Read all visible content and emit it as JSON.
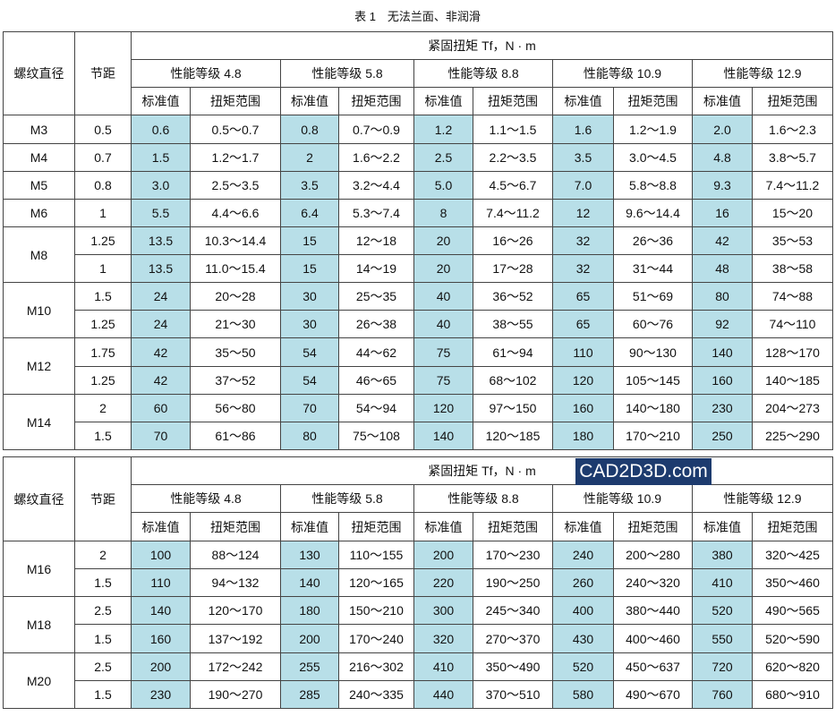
{
  "title": "表 1　无法兰面、非润滑",
  "watermark": "CAD2D3D.com",
  "tables": [
    {
      "header": {
        "diameter": "螺纹直径",
        "pitch": "节距",
        "torque": "紧固扭矩  Tf，N · m",
        "grades": [
          "性能等级  4.8",
          "性能等级  5.8",
          "性能等级  8.8",
          "性能等级  10.9",
          "性能等级  12.9"
        ],
        "subheaders": [
          "标准值",
          "扭矩范围",
          "标准值",
          "扭矩范围",
          "标准值",
          "扭矩范围",
          "标准值",
          "扭矩范围",
          "标准值",
          "扭矩范围"
        ]
      },
      "groups": [
        {
          "diameter": "M3",
          "rows": [
            [
              "0.5",
              "0.6",
              "0.5～0.7",
              "0.8",
              "0.7～0.9",
              "1.2",
              "1.1～1.5",
              "1.6",
              "1.2～1.9",
              "2.0",
              "1.6～2.3"
            ]
          ]
        },
        {
          "diameter": "M4",
          "rows": [
            [
              "0.7",
              "1.5",
              "1.2～1.7",
              "2",
              "1.6～2.2",
              "2.5",
              "2.2～3.5",
              "3.5",
              "3.0～4.5",
              "4.8",
              "3.8～5.7"
            ]
          ]
        },
        {
          "diameter": "M5",
          "rows": [
            [
              "0.8",
              "3.0",
              "2.5～3.5",
              "3.5",
              "3.2～4.4",
              "5.0",
              "4.5～6.7",
              "7.0",
              "5.8～8.8",
              "9.3",
              "7.4～11.2"
            ]
          ]
        },
        {
          "diameter": "M6",
          "rows": [
            [
              "1",
              "5.5",
              "4.4～6.6",
              "6.4",
              "5.3～7.4",
              "8",
              "7.4～11.2",
              "12",
              "9.6～14.4",
              "16",
              "15～20"
            ]
          ]
        },
        {
          "diameter": "M8",
          "rows": [
            [
              "1.25",
              "13.5",
              "10.3～14.4",
              "15",
              "12～18",
              "20",
              "16～26",
              "32",
              "26～36",
              "42",
              "35～53"
            ],
            [
              "1",
              "13.5",
              "11.0～15.4",
              "15",
              "14～19",
              "20",
              "17～28",
              "32",
              "31～44",
              "48",
              "38～58"
            ]
          ]
        },
        {
          "diameter": "M10",
          "rows": [
            [
              "1.5",
              "24",
              "20～28",
              "30",
              "25～35",
              "40",
              "36～52",
              "65",
              "51～69",
              "80",
              "74～88"
            ],
            [
              "1.25",
              "24",
              "21～30",
              "30",
              "26～38",
              "40",
              "38～55",
              "65",
              "60～76",
              "92",
              "74～110"
            ]
          ]
        },
        {
          "diameter": "M12",
          "rows": [
            [
              "1.75",
              "42",
              "35～50",
              "54",
              "44～62",
              "75",
              "61～94",
              "110",
              "90～130",
              "140",
              "128～170"
            ],
            [
              "1.25",
              "42",
              "37～52",
              "54",
              "46～65",
              "75",
              "68～102",
              "120",
              "105～145",
              "160",
              "140～185"
            ]
          ]
        },
        {
          "diameter": "M14",
          "rows": [
            [
              "2",
              "60",
              "56～80",
              "70",
              "54～94",
              "120",
              "97～150",
              "160",
              "140～180",
              "230",
              "204～273"
            ],
            [
              "1.5",
              "70",
              "61～86",
              "80",
              "75～108",
              "140",
              "120～185",
              "180",
              "170～210",
              "250",
              "225～290"
            ]
          ]
        }
      ]
    },
    {
      "header": {
        "diameter": "螺纹直径",
        "pitch": "节距",
        "torque": "紧固扭矩  Tf，N · m",
        "grades": [
          "性能等级  4.8",
          "性能等级  5.8",
          "性能等级  8.8",
          "性能等级  10.9",
          "性能等级  12.9"
        ],
        "subheaders": [
          "标准值",
          "扭矩范围",
          "标准值",
          "扭矩范围",
          "标准值",
          "扭矩范围",
          "标准值",
          "扭矩范围",
          "标准值",
          "扭矩范围"
        ]
      },
      "groups": [
        {
          "diameter": "M16",
          "rows": [
            [
              "2",
              "100",
              "88～124",
              "130",
              "110～155",
              "200",
              "170～230",
              "240",
              "200～280",
              "380",
              "320～425"
            ],
            [
              "1.5",
              "110",
              "94～132",
              "140",
              "120～165",
              "220",
              "190～250",
              "260",
              "240～320",
              "410",
              "350～460"
            ]
          ]
        },
        {
          "diameter": "M18",
          "rows": [
            [
              "2.5",
              "140",
              "120～170",
              "180",
              "150～210",
              "300",
              "245～340",
              "400",
              "380～440",
              "520",
              "490～565"
            ],
            [
              "1.5",
              "160",
              "137～192",
              "200",
              "170～240",
              "320",
              "270～370",
              "430",
              "400～460",
              "550",
              "520～590"
            ]
          ]
        },
        {
          "diameter": "M20",
          "rows": [
            [
              "2.5",
              "200",
              "172～242",
              "255",
              "216～302",
              "410",
              "350～490",
              "520",
              "450～637",
              "720",
              "620～820"
            ],
            [
              "1.5",
              "230",
              "190～270",
              "285",
              "240～335",
              "440",
              "370～510",
              "580",
              "490～670",
              "760",
              "680～910"
            ]
          ]
        }
      ]
    }
  ]
}
